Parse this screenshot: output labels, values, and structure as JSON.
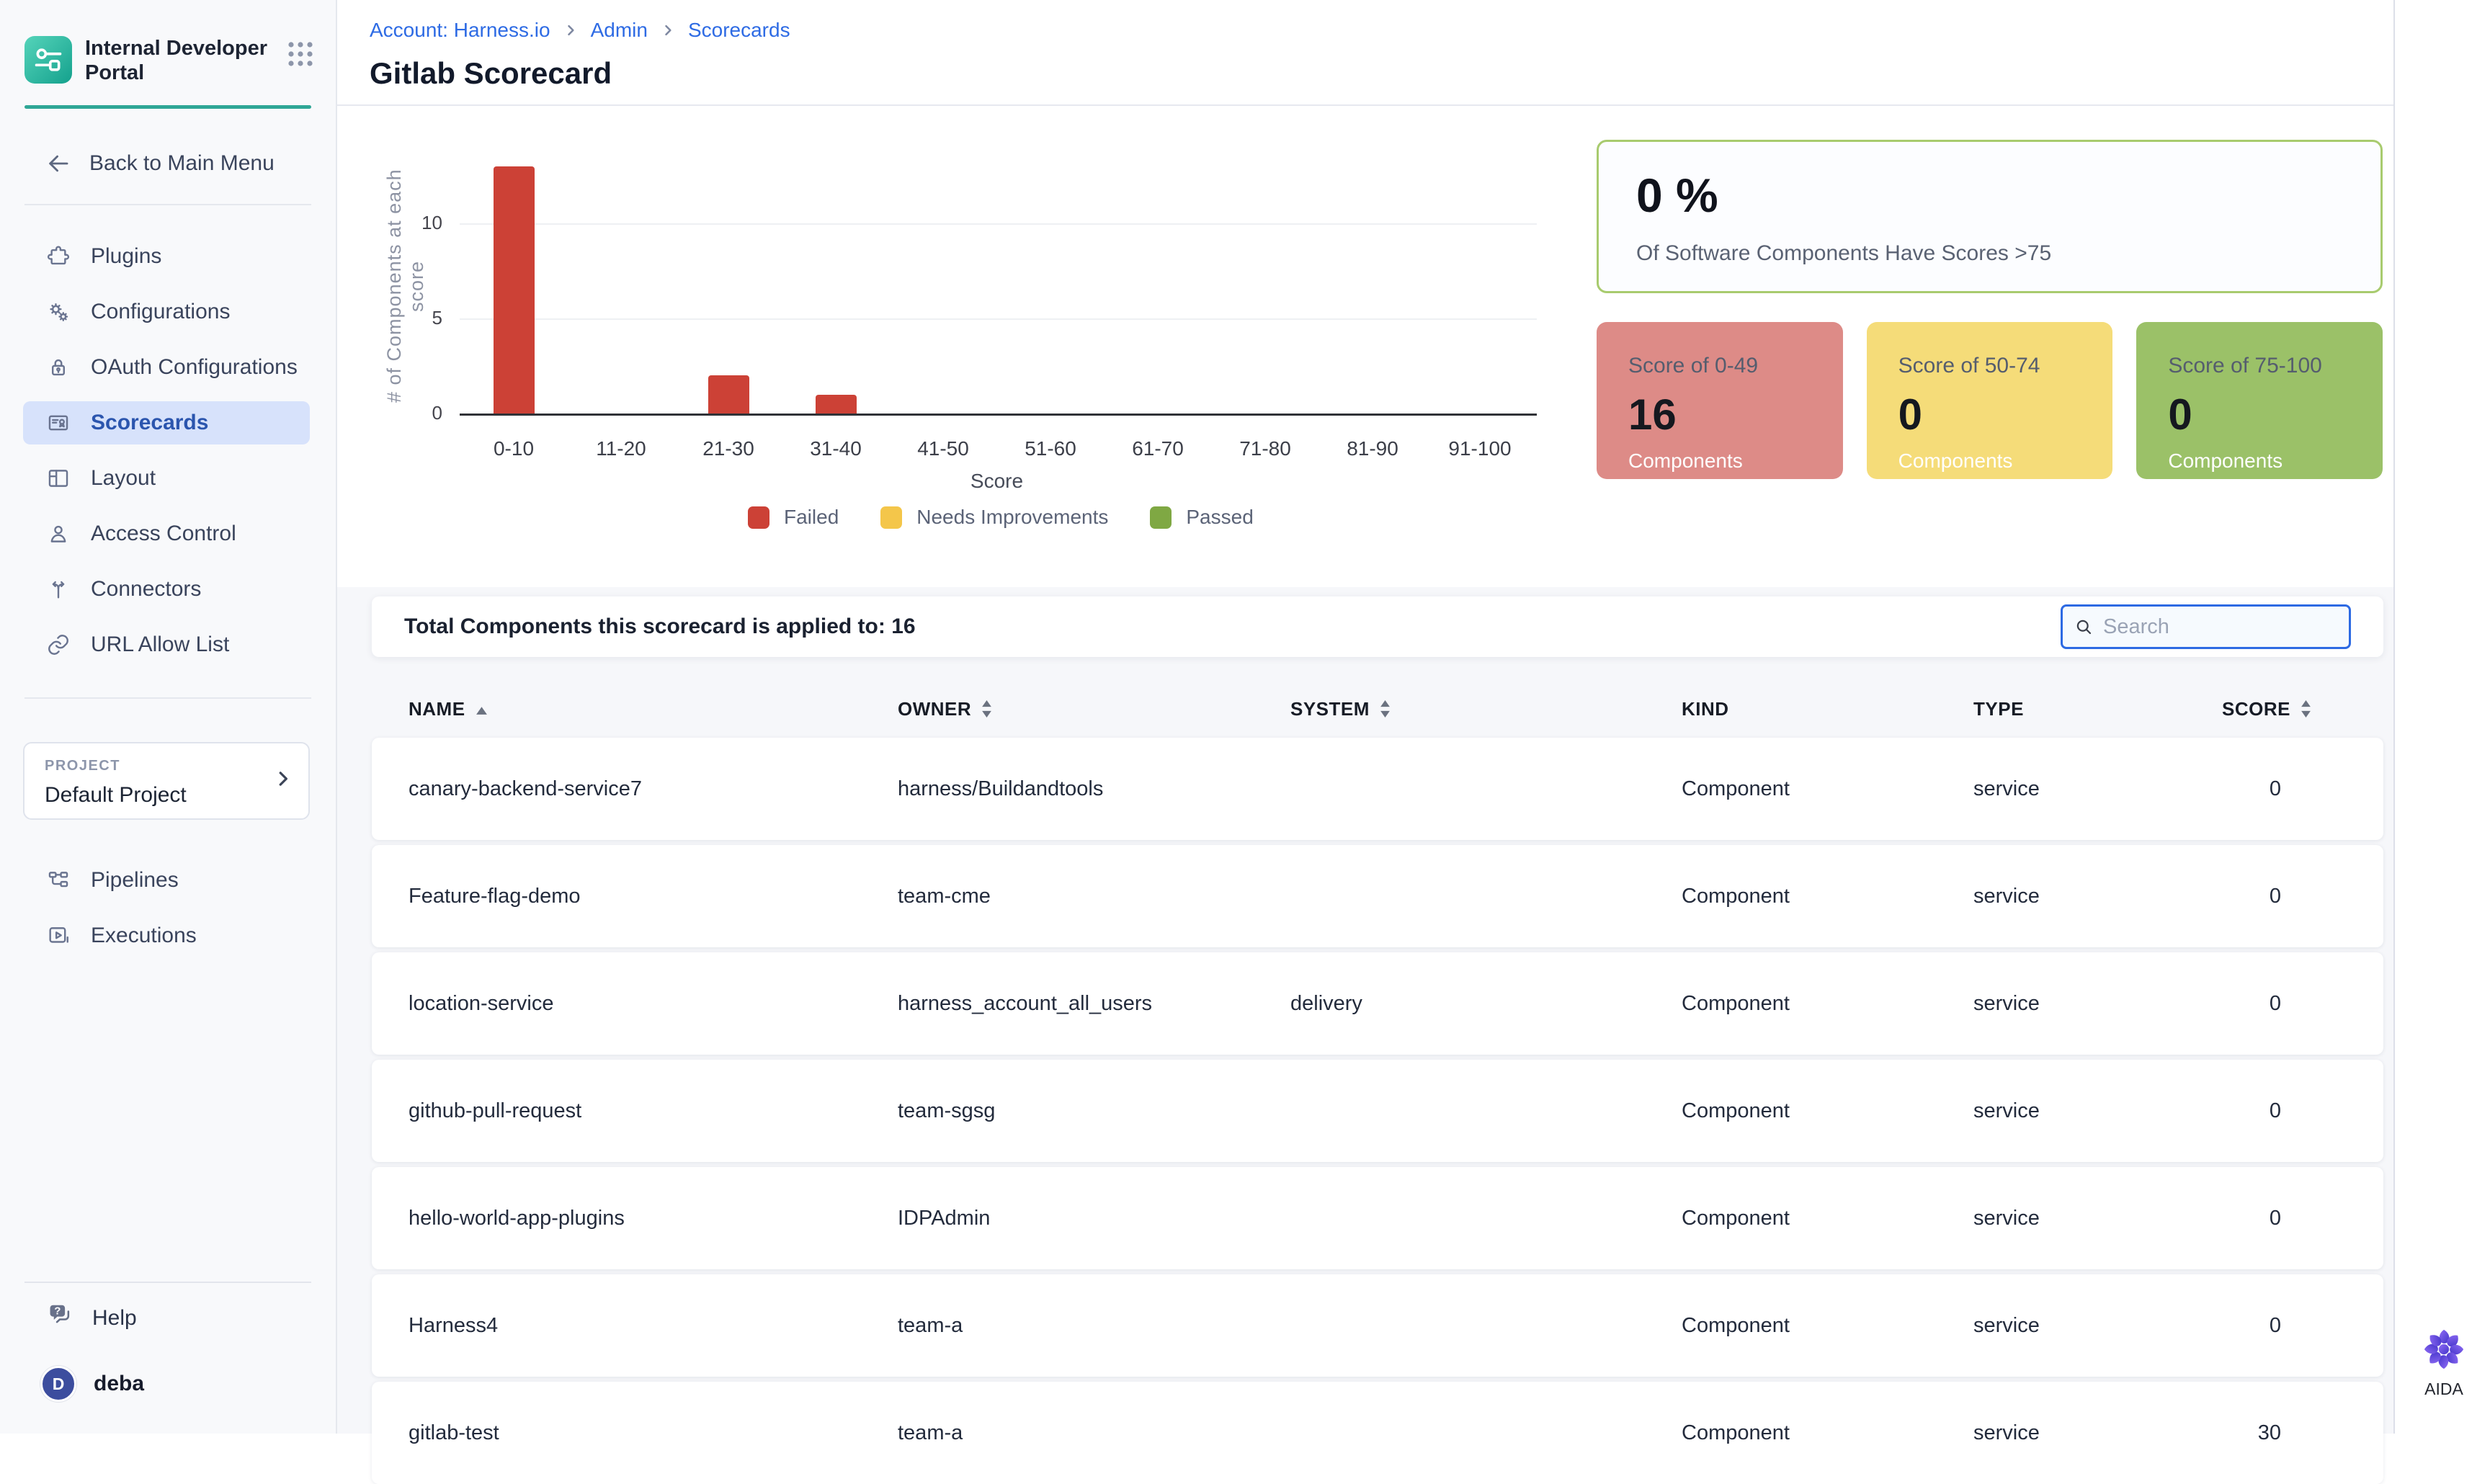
{
  "app": {
    "title": "Internal Developer Portal"
  },
  "sidebar": {
    "back_label": "Back to Main Menu",
    "items": [
      {
        "label": "Plugins",
        "icon": "puzzle-icon"
      },
      {
        "label": "Configurations",
        "icon": "gears-icon"
      },
      {
        "label": "OAuth Configurations",
        "icon": "lock-icon"
      },
      {
        "label": "Scorecards",
        "icon": "scorecard-icon",
        "active": true
      },
      {
        "label": "Layout",
        "icon": "layout-icon"
      },
      {
        "label": "Access Control",
        "icon": "person-icon"
      },
      {
        "label": "Connectors",
        "icon": "connectors-icon"
      },
      {
        "label": "URL Allow List",
        "icon": "link-icon"
      }
    ],
    "project": {
      "label": "PROJECT",
      "name": "Default Project"
    },
    "tools": [
      {
        "label": "Pipelines",
        "icon": "pipelines-icon"
      },
      {
        "label": "Executions",
        "icon": "executions-icon"
      }
    ],
    "help_label": "Help",
    "user": {
      "initial": "D",
      "name": "deba"
    }
  },
  "header": {
    "breadcrumb": [
      "Account: Harness.io",
      "Admin",
      "Scorecards"
    ],
    "title": "Gitlab Scorecard"
  },
  "chart_data": {
    "type": "bar",
    "categories": [
      "0-10",
      "11-20",
      "21-30",
      "31-40",
      "41-50",
      "51-60",
      "61-70",
      "71-80",
      "81-90",
      "91-100"
    ],
    "series": [
      {
        "name": "Failed",
        "color": "#cc4136",
        "values": [
          13,
          0,
          2,
          1,
          0,
          0,
          0,
          0,
          0,
          0
        ]
      },
      {
        "name": "Needs Improvements",
        "color": "#f4c64a",
        "values": [
          0,
          0,
          0,
          0,
          0,
          0,
          0,
          0,
          0,
          0
        ]
      },
      {
        "name": "Passed",
        "color": "#7fa843",
        "values": [
          0,
          0,
          0,
          0,
          0,
          0,
          0,
          0,
          0,
          0
        ]
      }
    ],
    "title": "",
    "xlabel": "Score",
    "ylabel": "# of Components at each score",
    "yticks": [
      0,
      5,
      10
    ],
    "ylim": [
      0,
      13.5
    ],
    "grid": true,
    "legend_position": "bottom"
  },
  "summary": {
    "percent": "0 %",
    "percent_caption": "Of Software Components Have Scores >75",
    "cards": [
      {
        "title": "Score of 0-49",
        "value": "16",
        "caption": "Components",
        "color": "#dd8b87"
      },
      {
        "title": "Score of 50-74",
        "value": "0",
        "caption": "Components",
        "color": "#f5dc79"
      },
      {
        "title": "Score of 75-100",
        "value": "0",
        "caption": "Components",
        "color": "#9bc168"
      }
    ]
  },
  "toolbar": {
    "total_label": "Total Components this scorecard is applied to: 16",
    "search_placeholder": "Search"
  },
  "table": {
    "columns": [
      {
        "label": "NAME",
        "sort": "asc"
      },
      {
        "label": "OWNER",
        "sort": "both"
      },
      {
        "label": "SYSTEM",
        "sort": "both"
      },
      {
        "label": "KIND",
        "sort": "none"
      },
      {
        "label": "TYPE",
        "sort": "none"
      },
      {
        "label": "SCORE",
        "sort": "both"
      }
    ],
    "rows": [
      {
        "name": "canary-backend-service7",
        "owner": "harness/Buildandtools",
        "system": "",
        "kind": "Component",
        "type": "service",
        "score": "0"
      },
      {
        "name": "Feature-flag-demo",
        "owner": "team-cme",
        "system": "",
        "kind": "Component",
        "type": "service",
        "score": "0"
      },
      {
        "name": "location-service",
        "owner": "harness_account_all_users",
        "system": "delivery",
        "kind": "Component",
        "type": "service",
        "score": "0"
      },
      {
        "name": "github-pull-request",
        "owner": "team-sgsg",
        "system": "",
        "kind": "Component",
        "type": "service",
        "score": "0"
      },
      {
        "name": "hello-world-app-plugins",
        "owner": "IDPAdmin",
        "system": "",
        "kind": "Component",
        "type": "service",
        "score": "0"
      },
      {
        "name": "Harness4",
        "owner": "team-a",
        "system": "",
        "kind": "Component",
        "type": "service",
        "score": "0"
      },
      {
        "name": "gitlab-test",
        "owner": "team-a",
        "system": "",
        "kind": "Component",
        "type": "service",
        "score": "30"
      }
    ]
  },
  "aida": {
    "label": "AIDA"
  }
}
